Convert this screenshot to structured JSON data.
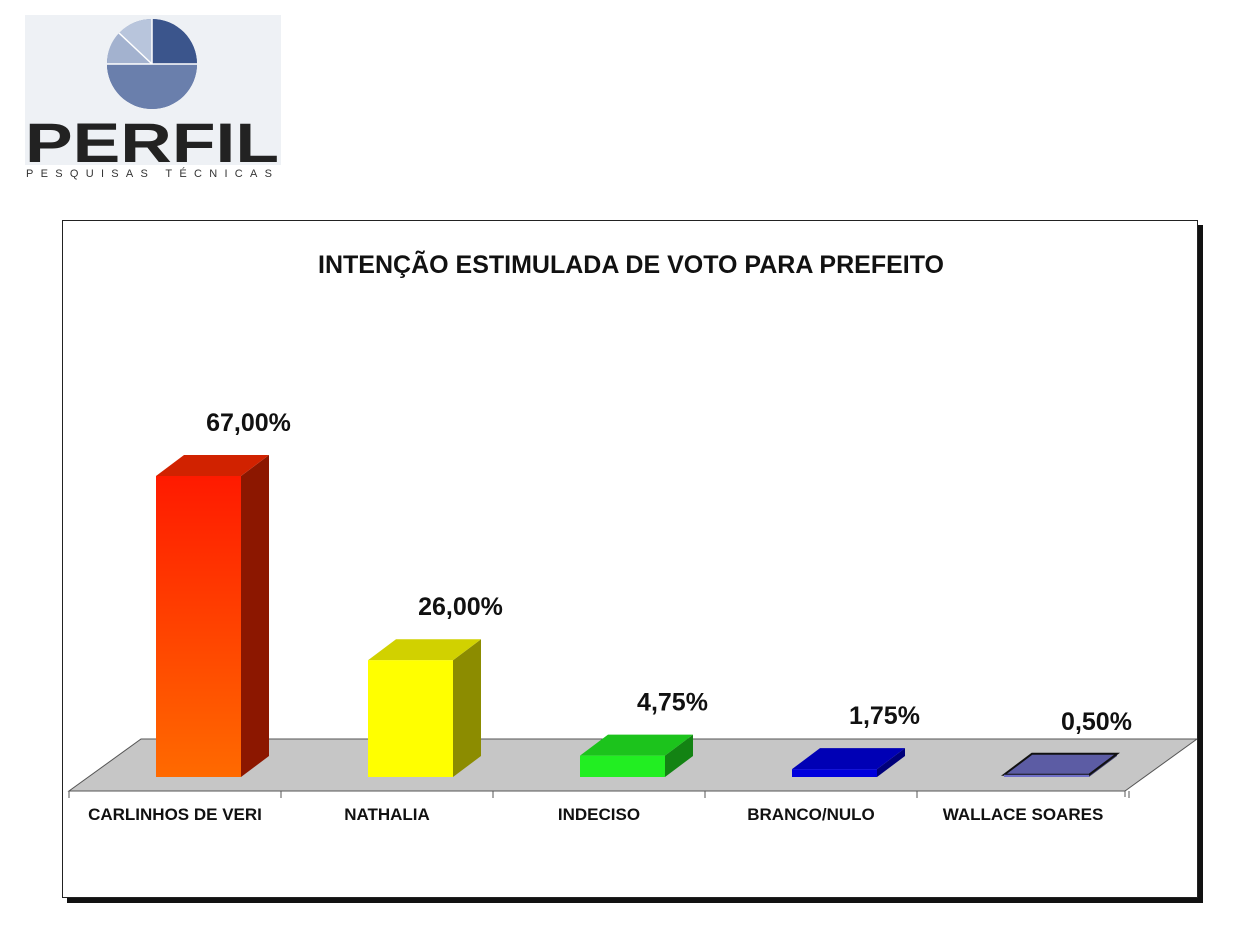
{
  "logo": {
    "word": "PERFIL",
    "tagline": "PESQUISAS TÉCNICAS",
    "colors": [
      "#3e5a90",
      "#6f85b4",
      "#a7b7d4",
      "#e8ecf3"
    ]
  },
  "chart_data": {
    "type": "bar",
    "title": "INTENÇÃO ESTIMULADA DE VOTO PARA PREFEITO",
    "xlabel": "",
    "ylabel": "",
    "ylim": [
      0,
      75
    ],
    "grid": false,
    "legend": "none",
    "categories": [
      "CARLINHOS DE VERI",
      "NATHALIA",
      "INDECISO",
      "BRANCO/NULO",
      "WALLACE SOARES"
    ],
    "values": [
      67.0,
      26.0,
      4.75,
      1.75,
      0.5
    ],
    "value_labels": [
      "67,00%",
      "26,00%",
      "4,75%",
      "1,75%",
      "0,50%"
    ],
    "colors": [
      "#ff2a00",
      "#ffff00",
      "#22ee22",
      "#0000dd",
      "#7070c8"
    ]
  }
}
